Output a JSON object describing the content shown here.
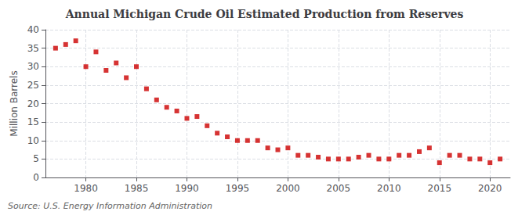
{
  "chart_data": {
    "type": "scatter",
    "title": "Annual Michigan Crude Oil Estimated Production from Reserves",
    "ylabel": "Million Barrels",
    "source": "Source: U.S. Energy Information Administration",
    "x": [
      1977,
      1978,
      1979,
      1980,
      1981,
      1982,
      1983,
      1984,
      1985,
      1986,
      1987,
      1988,
      1989,
      1990,
      1991,
      1992,
      1993,
      1994,
      1995,
      1996,
      1997,
      1998,
      1999,
      2000,
      2001,
      2002,
      2003,
      2004,
      2005,
      2006,
      2007,
      2008,
      2009,
      2010,
      2011,
      2012,
      2013,
      2014,
      2015,
      2016,
      2017,
      2018,
      2019,
      2020,
      2021
    ],
    "values": [
      35.0,
      36.0,
      37.0,
      30.0,
      34.0,
      29.0,
      31.0,
      27.0,
      30.0,
      24.0,
      21.0,
      19.0,
      18.0,
      16.0,
      16.5,
      14.0,
      12.0,
      11.0,
      10.0,
      10.0,
      10.0,
      8.0,
      7.5,
      8.0,
      6.0,
      6.0,
      5.5,
      5.0,
      5.0,
      5.0,
      5.5,
      6.0,
      5.0,
      5.0,
      6.0,
      6.0,
      7.0,
      8.0,
      4.0,
      6.0,
      6.0,
      5.0,
      5.0,
      4.0,
      5.0
    ],
    "color": "#cc0000",
    "marker": "square",
    "xlim": [
      1976,
      2022
    ],
    "xticks": [
      1980,
      1985,
      1990,
      1995,
      2000,
      2005,
      2010,
      2015,
      2020
    ],
    "ylim": [
      0,
      40
    ],
    "yticks": [
      0,
      5,
      10,
      15,
      20,
      25,
      30,
      35,
      40
    ],
    "grid": true
  }
}
